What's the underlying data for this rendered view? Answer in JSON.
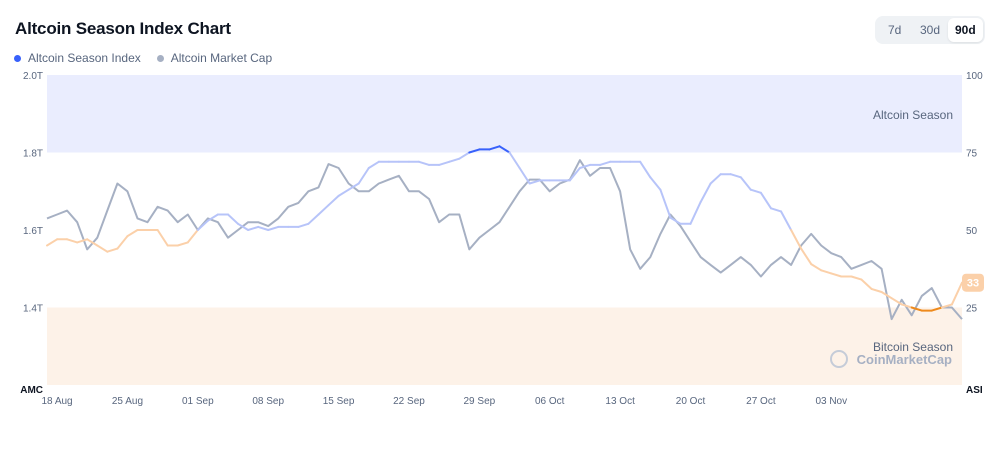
{
  "header": {
    "title": "Altcoin Season Index Chart"
  },
  "legend": [
    {
      "label": "Altcoin Season Index",
      "color": "#3861fb"
    },
    {
      "label": "Altcoin Market Cap",
      "color": "#a6b0c3"
    }
  ],
  "range_selector": {
    "options": [
      "7d",
      "30d",
      "90d"
    ],
    "selected": "90d"
  },
  "chart_data": {
    "type": "line",
    "title": "Altcoin Season Index Chart",
    "x_tick_labels": [
      "18 Aug",
      "25 Aug",
      "01 Sep",
      "08 Sep",
      "15 Sep",
      "22 Sep",
      "29 Sep",
      "06 Oct",
      "13 Oct",
      "20 Oct",
      "27 Oct",
      "03 Nov"
    ],
    "left_axis": {
      "label": "AMC",
      "ticks": [
        "2.0T",
        "1.8T",
        "1.6T",
        "1.4T"
      ],
      "range": [
        1.2,
        2.0
      ],
      "unit": "T"
    },
    "right_axis": {
      "label": "ASI",
      "ticks": [
        "100",
        "75",
        "50",
        "25"
      ],
      "range": [
        0,
        100
      ]
    },
    "zones": [
      {
        "label": "Altcoin Season",
        "from": 75,
        "to": 100,
        "color": "#eaedfe"
      },
      {
        "label": "Bitcoin Season",
        "from": 0,
        "to": 25,
        "color": "#fdf2e8"
      }
    ],
    "current_value_badge": "33",
    "watermark": "CoinMarketCap",
    "x_domain": [
      0,
      91
    ],
    "series": [
      {
        "name": "Altcoin Season Index",
        "axis": "right",
        "color_high": "#3861fb",
        "color_mid": "#b7c4f9",
        "color_mid_low": "#fbd0a9",
        "color_low": "#ee8a1c",
        "points": [
          [
            0,
            45
          ],
          [
            1,
            47
          ],
          [
            2,
            47
          ],
          [
            3,
            46
          ],
          [
            4,
            47
          ],
          [
            5,
            45
          ],
          [
            6,
            43
          ],
          [
            7,
            44
          ],
          [
            8,
            48
          ],
          [
            9,
            50
          ],
          [
            10,
            50
          ],
          [
            11,
            50
          ],
          [
            12,
            45
          ],
          [
            13,
            45
          ],
          [
            14,
            46
          ],
          [
            15,
            50
          ],
          [
            16,
            53
          ],
          [
            17,
            55
          ],
          [
            18,
            55
          ],
          [
            19,
            52
          ],
          [
            20,
            50
          ],
          [
            21,
            51
          ],
          [
            22,
            50
          ],
          [
            23,
            51
          ],
          [
            24,
            51
          ],
          [
            25,
            51
          ],
          [
            26,
            52
          ],
          [
            27,
            55
          ],
          [
            28,
            58
          ],
          [
            29,
            61
          ],
          [
            30,
            63
          ],
          [
            31,
            65
          ],
          [
            32,
            70
          ],
          [
            33,
            72
          ],
          [
            34,
            72
          ],
          [
            35,
            72
          ],
          [
            36,
            72
          ],
          [
            37,
            72
          ],
          [
            38,
            71
          ],
          [
            39,
            71
          ],
          [
            40,
            72
          ],
          [
            41,
            73
          ],
          [
            42,
            75
          ],
          [
            43,
            76
          ],
          [
            44,
            76
          ],
          [
            45,
            77
          ],
          [
            46,
            75
          ],
          [
            47,
            70
          ],
          [
            48,
            65
          ],
          [
            49,
            66
          ],
          [
            50,
            66
          ],
          [
            51,
            66
          ],
          [
            52,
            66
          ],
          [
            53,
            70
          ],
          [
            54,
            71
          ],
          [
            55,
            71
          ],
          [
            56,
            72
          ],
          [
            57,
            72
          ],
          [
            58,
            72
          ],
          [
            59,
            72
          ],
          [
            60,
            67
          ],
          [
            61,
            63
          ],
          [
            62,
            54
          ],
          [
            63,
            52
          ],
          [
            64,
            52
          ],
          [
            65,
            59
          ],
          [
            66,
            65
          ],
          [
            67,
            68
          ],
          [
            68,
            68
          ],
          [
            69,
            67
          ],
          [
            70,
            63
          ],
          [
            71,
            62
          ],
          [
            72,
            57
          ],
          [
            73,
            56
          ],
          [
            74,
            50
          ],
          [
            75,
            44
          ],
          [
            76,
            39
          ],
          [
            77,
            37
          ],
          [
            78,
            36
          ],
          [
            79,
            35
          ],
          [
            80,
            35
          ],
          [
            81,
            34
          ],
          [
            82,
            31
          ],
          [
            83,
            30
          ],
          [
            84,
            28
          ],
          [
            85,
            26
          ],
          [
            86,
            25
          ],
          [
            87,
            24
          ],
          [
            88,
            24
          ],
          [
            89,
            25
          ],
          [
            90,
            26
          ],
          [
            91,
            33
          ]
        ]
      },
      {
        "name": "Altcoin Market Cap",
        "axis": "left",
        "color": "#a6b0c3",
        "points": [
          [
            0,
            1.63
          ],
          [
            1,
            1.64
          ],
          [
            2,
            1.65
          ],
          [
            3,
            1.62
          ],
          [
            4,
            1.55
          ],
          [
            5,
            1.58
          ],
          [
            6,
            1.65
          ],
          [
            7,
            1.72
          ],
          [
            8,
            1.7
          ],
          [
            9,
            1.63
          ],
          [
            10,
            1.62
          ],
          [
            11,
            1.66
          ],
          [
            12,
            1.65
          ],
          [
            13,
            1.62
          ],
          [
            14,
            1.64
          ],
          [
            15,
            1.6
          ],
          [
            16,
            1.63
          ],
          [
            17,
            1.62
          ],
          [
            18,
            1.58
          ],
          [
            19,
            1.6
          ],
          [
            20,
            1.62
          ],
          [
            21,
            1.62
          ],
          [
            22,
            1.61
          ],
          [
            23,
            1.63
          ],
          [
            24,
            1.66
          ],
          [
            25,
            1.67
          ],
          [
            26,
            1.7
          ],
          [
            27,
            1.71
          ],
          [
            28,
            1.77
          ],
          [
            29,
            1.76
          ],
          [
            30,
            1.72
          ],
          [
            31,
            1.7
          ],
          [
            32,
            1.7
          ],
          [
            33,
            1.72
          ],
          [
            34,
            1.73
          ],
          [
            35,
            1.74
          ],
          [
            36,
            1.7
          ],
          [
            37,
            1.7
          ],
          [
            38,
            1.68
          ],
          [
            39,
            1.62
          ],
          [
            40,
            1.64
          ],
          [
            41,
            1.64
          ],
          [
            42,
            1.55
          ],
          [
            43,
            1.58
          ],
          [
            44,
            1.6
          ],
          [
            45,
            1.62
          ],
          [
            46,
            1.66
          ],
          [
            47,
            1.7
          ],
          [
            48,
            1.73
          ],
          [
            49,
            1.73
          ],
          [
            50,
            1.7
          ],
          [
            51,
            1.72
          ],
          [
            52,
            1.73
          ],
          [
            53,
            1.78
          ],
          [
            54,
            1.74
          ],
          [
            55,
            1.76
          ],
          [
            56,
            1.76
          ],
          [
            57,
            1.7
          ],
          [
            58,
            1.55
          ],
          [
            59,
            1.5
          ],
          [
            60,
            1.53
          ],
          [
            61,
            1.59
          ],
          [
            62,
            1.64
          ],
          [
            63,
            1.61
          ],
          [
            64,
            1.57
          ],
          [
            65,
            1.53
          ],
          [
            66,
            1.51
          ],
          [
            67,
            1.49
          ],
          [
            68,
            1.51
          ],
          [
            69,
            1.53
          ],
          [
            70,
            1.51
          ],
          [
            71,
            1.48
          ],
          [
            72,
            1.51
          ],
          [
            73,
            1.53
          ],
          [
            74,
            1.51
          ],
          [
            75,
            1.56
          ],
          [
            76,
            1.59
          ],
          [
            77,
            1.56
          ],
          [
            78,
            1.54
          ],
          [
            79,
            1.53
          ],
          [
            80,
            1.5
          ],
          [
            81,
            1.51
          ],
          [
            82,
            1.52
          ],
          [
            83,
            1.5
          ],
          [
            84,
            1.37
          ],
          [
            85,
            1.42
          ],
          [
            86,
            1.38
          ],
          [
            87,
            1.43
          ],
          [
            88,
            1.45
          ],
          [
            89,
            1.4
          ],
          [
            90,
            1.4
          ],
          [
            91,
            1.37
          ]
        ]
      }
    ]
  }
}
